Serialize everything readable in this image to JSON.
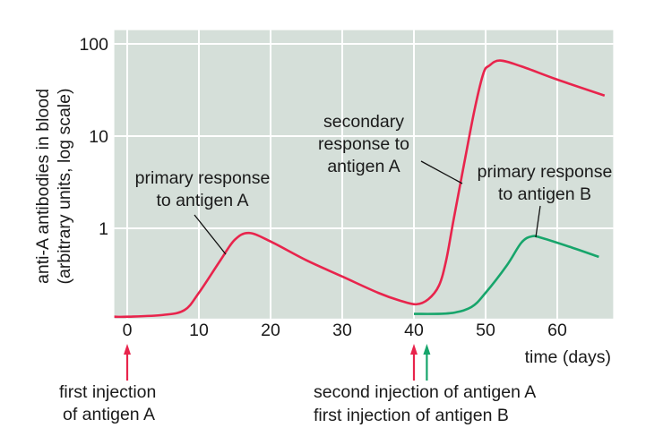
{
  "chart_data": {
    "type": "line",
    "title": "",
    "ylabel": [
      "anti-A antibodies in blood",
      "(arbitrary units, log scale)"
    ],
    "xlabel": "time (days)",
    "xlim": [
      -1.8,
      67.8
    ],
    "ylim": [
      0.105,
      141
    ],
    "y_scale": "log",
    "grid": true,
    "background_color": "#d5dfd9",
    "x_ticks": [
      "0",
      "10",
      "20",
      "30",
      "40",
      "50",
      "60"
    ],
    "x_tick_values": [
      0,
      10,
      20,
      30,
      40,
      50,
      60
    ],
    "y_ticks": [
      "1",
      "10",
      "100"
    ],
    "y_tick_values": [
      1,
      10,
      100
    ],
    "series": [
      {
        "color": "#e8244c",
        "x": [
          -1.8,
          0,
          5,
          8,
          10,
          13,
          15,
          17,
          20,
          25,
          30,
          35,
          38,
          40.3,
          42,
          43.5,
          44.5,
          45.5,
          47,
          48.5,
          49.7,
          50.5,
          52,
          55,
          60,
          66.6
        ],
        "y": [
          0.11,
          0.11,
          0.115,
          0.13,
          0.2,
          0.45,
          0.75,
          0.89,
          0.72,
          0.45,
          0.3,
          0.2,
          0.165,
          0.15,
          0.17,
          0.24,
          0.45,
          1.2,
          5,
          20,
          48,
          58,
          66,
          57,
          41,
          27.5
        ]
      },
      {
        "color": "#17a56b",
        "x": [
          40,
          45,
          48,
          50,
          53,
          55,
          56.5,
          58,
          62,
          65.8
        ],
        "y": [
          0.118,
          0.12,
          0.14,
          0.2,
          0.4,
          0.7,
          0.82,
          0.78,
          0.62,
          0.49
        ]
      }
    ],
    "annotations": [
      {
        "lines": [
          "primary response",
          "to antigen A"
        ],
        "points_to": "first peak of antigen A curve"
      },
      {
        "lines": [
          "secondary",
          "response to",
          "antigen A"
        ],
        "points_to": "rising secondary response"
      },
      {
        "lines": [
          "primary response",
          "to antigen B"
        ],
        "points_to": "peak of antigen B curve"
      }
    ],
    "injections": [
      {
        "day": 0,
        "color": "#e8244c",
        "lines": [
          "first injection",
          "of antigen A"
        ]
      },
      {
        "day": 40,
        "color": "#e8244c",
        "lines": [
          "second injection of antigen A"
        ]
      },
      {
        "day": 41.8,
        "color": "#17a56b",
        "lines": [
          "first injection of antigen B"
        ]
      }
    ]
  }
}
